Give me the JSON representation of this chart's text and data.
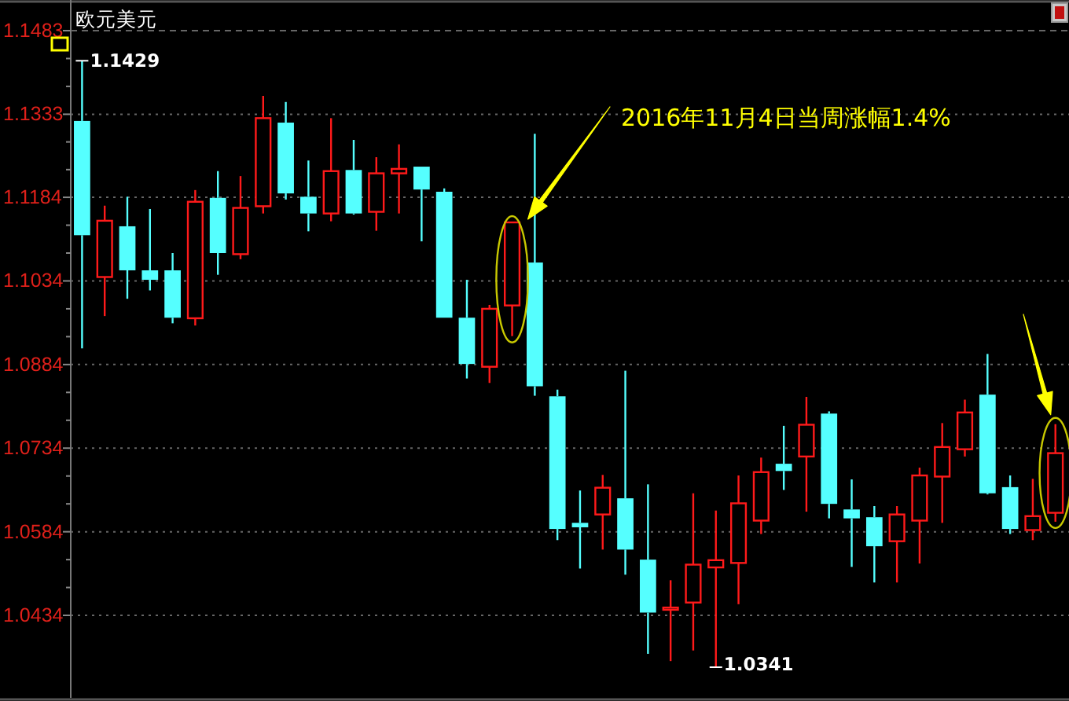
{
  "chart_data": {
    "type": "candlestick",
    "title": "欧元美元",
    "annotations": [
      "2016年11月4日当周涨幅1.4%",
      "1.1429",
      "1.0341"
    ],
    "categories": [
      null,
      null,
      null,
      null,
      null,
      null,
      null,
      null,
      null,
      null,
      null,
      null,
      null,
      null,
      null,
      null,
      null,
      null,
      null,
      null,
      null,
      null,
      null,
      null,
      null,
      null,
      null,
      null,
      null,
      null,
      null,
      null,
      null,
      null,
      null,
      null,
      null,
      null,
      null,
      null,
      null,
      null,
      null,
      null
    ],
    "ohlc": [
      [
        1.1321,
        1.1429,
        1.0913,
        1.1116
      ],
      [
        1.1041,
        1.1169,
        1.0971,
        1.1142
      ],
      [
        1.1132,
        1.1185,
        1.1002,
        1.1053
      ],
      [
        1.1053,
        1.1163,
        1.1017,
        1.1036
      ],
      [
        1.1053,
        1.1084,
        1.0958,
        1.0968
      ],
      [
        1.0967,
        1.1197,
        1.0954,
        1.1176
      ],
      [
        1.1183,
        1.1231,
        1.1045,
        1.1084
      ],
      [
        1.1082,
        1.1222,
        1.1073,
        1.1165
      ],
      [
        1.1168,
        1.1366,
        1.1155,
        1.1326
      ],
      [
        1.1318,
        1.1355,
        1.118,
        1.1191
      ],
      [
        1.1185,
        1.125,
        1.1123,
        1.1155
      ],
      [
        1.1155,
        1.1326,
        1.1141,
        1.1231
      ],
      [
        1.1233,
        1.1287,
        1.1153,
        1.1155
      ],
      [
        1.1158,
        1.1256,
        1.1124,
        1.1227
      ],
      [
        1.1227,
        1.1279,
        1.1155,
        1.1235
      ],
      [
        1.1239,
        1.1239,
        1.1105,
        1.1198
      ],
      [
        1.1194,
        1.12,
        1.0968,
        1.0968
      ],
      [
        1.0968,
        1.1036,
        1.0859,
        1.0885
      ],
      [
        1.088,
        1.0991,
        1.0851,
        1.0984
      ],
      [
        1.099,
        1.1139,
        1.0935,
        1.1139
      ],
      [
        1.1067,
        1.1298,
        1.0828,
        1.0845
      ],
      [
        1.0827,
        1.0839,
        1.0569,
        1.0589
      ],
      [
        1.06,
        1.0658,
        1.0518,
        1.0592
      ],
      [
        1.0615,
        1.0686,
        1.0552,
        1.0663
      ],
      [
        1.0644,
        1.0873,
        1.0507,
        1.0552
      ],
      [
        1.0534,
        1.0669,
        1.0365,
        1.0439
      ],
      [
        1.0444,
        1.0497,
        1.0352,
        1.0448
      ],
      [
        1.0457,
        1.0653,
        1.0371,
        1.0525
      ],
      [
        1.052,
        1.0622,
        1.0341,
        1.0533
      ],
      [
        1.0528,
        1.0685,
        1.0454,
        1.0635
      ],
      [
        1.0604,
        1.0717,
        1.058,
        1.0691
      ],
      [
        1.0706,
        1.0774,
        1.0659,
        1.0693
      ],
      [
        1.0719,
        1.0826,
        1.062,
        1.0776
      ],
      [
        1.0796,
        1.08,
        1.0608,
        1.0634
      ],
      [
        1.0624,
        1.0678,
        1.0521,
        1.0608
      ],
      [
        1.061,
        1.063,
        1.0493,
        1.0558
      ],
      [
        1.0567,
        1.063,
        1.0493,
        1.0615
      ],
      [
        1.0604,
        1.0699,
        1.0527,
        1.0685
      ],
      [
        1.0683,
        1.0779,
        1.06,
        1.0736
      ],
      [
        1.0732,
        1.0821,
        1.0719,
        1.0798
      ],
      [
        1.083,
        1.0903,
        1.0651,
        1.0653
      ],
      [
        1.0664,
        1.0685,
        1.058,
        1.0589
      ],
      [
        1.0587,
        1.0679,
        1.0569,
        1.0612
      ],
      [
        1.0618,
        1.0777,
        1.0602,
        1.0725
      ]
    ],
    "ylim": [
      1.0286,
      1.1483
    ],
    "yticks": [
      1.0434,
      1.0584,
      1.0734,
      1.0884,
      1.1034,
      1.1184,
      1.1333,
      1.1483
    ],
    "grid": "y"
  }
}
